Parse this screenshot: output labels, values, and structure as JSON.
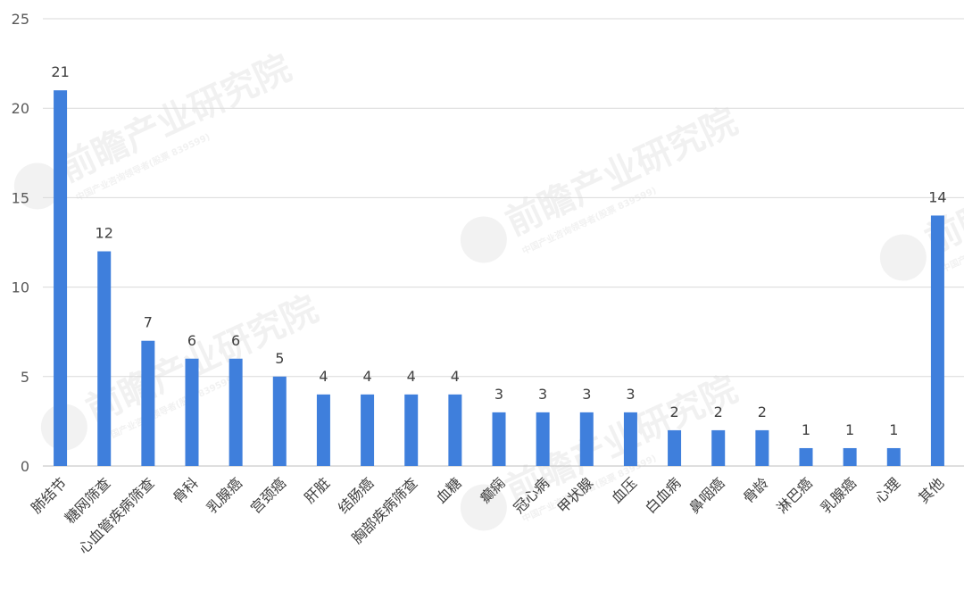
{
  "chart_data": {
    "type": "bar",
    "title": "",
    "xlabel": "",
    "ylabel": "",
    "ylim": [
      0,
      25
    ],
    "yticks": [
      0,
      5,
      10,
      15,
      20,
      25
    ],
    "grid": true,
    "legend": "none",
    "bar_color": "#3f7fdc",
    "categories": [
      "肺结节",
      "糖网筛查",
      "心血管疾病筛查",
      "骨科",
      "乳腺癌",
      "宫颈癌",
      "肝脏",
      "结肠癌",
      "胸部疾病筛查",
      "血糖",
      "癫痫",
      "冠心病",
      "甲状腺",
      "血压",
      "白血病",
      "鼻咽癌",
      "骨龄",
      "淋巴癌",
      "乳腺癌",
      "心理",
      "其他"
    ],
    "values": [
      21,
      12,
      7,
      6,
      6,
      5,
      4,
      4,
      4,
      4,
      3,
      3,
      3,
      3,
      2,
      2,
      2,
      1,
      1,
      1,
      14
    ]
  },
  "watermark": {
    "brand": "前瞻产业研究院",
    "sub": "中国产业咨询领导者(股票 839599)"
  }
}
